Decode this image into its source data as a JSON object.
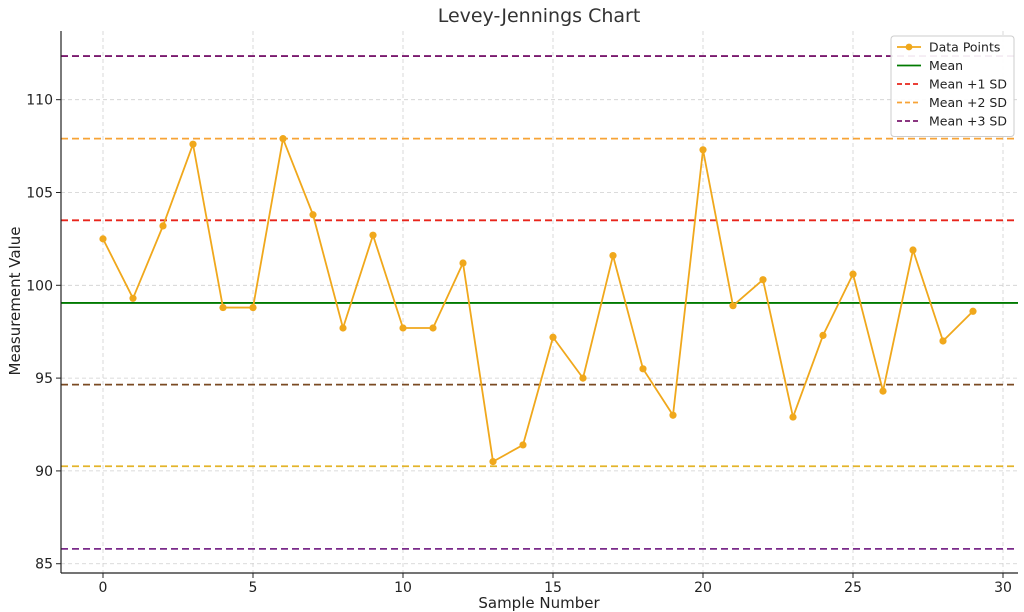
{
  "chart_data": {
    "type": "line",
    "title": "Levey-Jennings Chart",
    "xlabel": "Sample Number",
    "ylabel": "Measurement Value",
    "xlim": [
      -1.4,
      30.5
    ],
    "ylim": [
      84.5,
      113.7
    ],
    "x_ticks": [
      0,
      5,
      10,
      15,
      20,
      25,
      30
    ],
    "y_ticks": [
      85,
      90,
      95,
      100,
      105,
      110
    ],
    "grid": true,
    "legend_position": "top-right",
    "series": [
      {
        "name": "Data Points",
        "kind": "line-with-markers",
        "color": "#f0a81c",
        "x": [
          0,
          1,
          2,
          3,
          4,
          5,
          6,
          7,
          8,
          9,
          10,
          11,
          12,
          13,
          14,
          15,
          16,
          17,
          18,
          19,
          20,
          21,
          22,
          23,
          24,
          25,
          26,
          27,
          28,
          29
        ],
        "values": [
          102.5,
          99.3,
          103.2,
          107.6,
          98.8,
          98.8,
          107.9,
          103.8,
          97.7,
          102.7,
          97.7,
          97.7,
          101.2,
          90.5,
          91.4,
          97.2,
          95.0,
          101.6,
          95.5,
          93.0,
          107.3,
          98.9,
          100.3,
          92.9,
          97.3,
          100.6,
          94.3,
          101.9,
          97.0,
          98.6
        ]
      }
    ],
    "reference_lines": [
      {
        "name": "Mean",
        "value": 99.05,
        "color": "#007a00",
        "style": "solid",
        "in_legend": true
      },
      {
        "name": "Mean +1 SD",
        "value": 103.5,
        "color": "#e8251b",
        "style": "dashed",
        "in_legend": true
      },
      {
        "name": "Mean +2 SD",
        "value": 107.9,
        "color": "#f7a336",
        "style": "dashed",
        "in_legend": true
      },
      {
        "name": "Mean +3 SD",
        "value": 112.35,
        "color": "#7a1a6e",
        "style": "dashed",
        "in_legend": true
      },
      {
        "value": 94.65,
        "color": "#7a4a22",
        "style": "dashed",
        "in_legend": false
      },
      {
        "value": 90.25,
        "color": "#e3b42a",
        "style": "dashed",
        "in_legend": false
      },
      {
        "value": 85.8,
        "color": "#7a2a8a",
        "style": "dashed",
        "in_legend": false
      }
    ]
  }
}
